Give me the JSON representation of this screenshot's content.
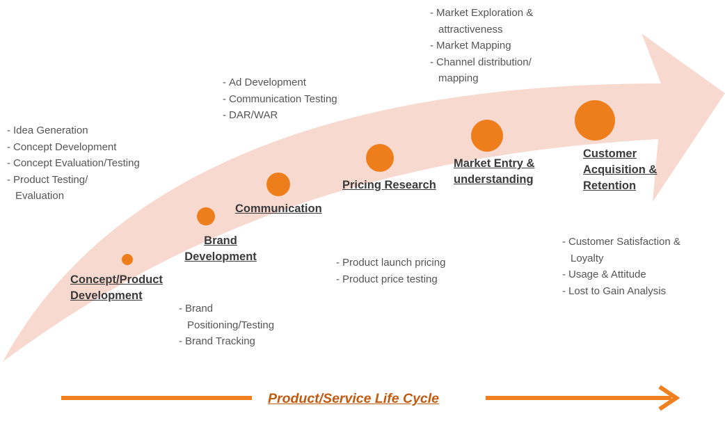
{
  "colors": {
    "arrow_fill": "#f8d9d0",
    "dot": "#ee7e1c",
    "footer_arrow": "#ef7f1f",
    "footer_text": "#c25a10",
    "label_text": "#3a3a3a",
    "bullet_text": "#555555"
  },
  "stages": [
    {
      "label_lines": [
        "Concept/Product",
        "Development"
      ],
      "bullets": [
        "Idea Generation",
        "Concept Development",
        "Concept Evaluation/Testing",
        "Product Testing/ Evaluation"
      ]
    },
    {
      "label_lines": [
        "Brand",
        "Development"
      ],
      "bullets": [
        "Brand Positioning/Testing",
        "Brand Tracking"
      ]
    },
    {
      "label_lines": [
        "Communication"
      ],
      "bullets": [
        "Ad Development",
        "Communication Testing",
        "DAR/WAR"
      ]
    },
    {
      "label_lines": [
        "Pricing Research"
      ],
      "bullets": [
        "Product launch pricing",
        "Product price testing"
      ]
    },
    {
      "label_lines": [
        "Market Entry &",
        "understanding"
      ],
      "bullets": [
        "Market Exploration & attractiveness",
        "Market Mapping",
        "Channel distribution/ mapping"
      ]
    },
    {
      "label_lines": [
        "Customer",
        "Acquisition &",
        "Retention"
      ],
      "bullets": [
        "Customer Satisfaction & Loyalty",
        "Usage & Attitude",
        "Lost to Gain Analysis"
      ]
    }
  ],
  "footer": {
    "label": "Product/Service Life Cycle"
  }
}
